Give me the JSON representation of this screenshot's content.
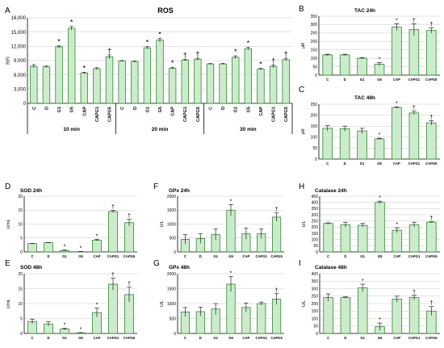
{
  "chart_data": [
    {
      "id": "A",
      "type": "bar",
      "title": "ROS",
      "ylabel": "RFI",
      "ylim": [
        0,
        18000
      ],
      "yticks": [
        0,
        3000,
        6000,
        9000,
        12000,
        15000,
        18000
      ],
      "ytick_labels": [
        "0",
        "3,000",
        "6,000",
        "9,000",
        "12,000",
        "15,000",
        "18,000"
      ],
      "grid": true,
      "categories": [
        "C",
        "D",
        "G1",
        "G5",
        "CAP",
        "CAPG1",
        "CAPG5",
        "C",
        "D",
        "G1",
        "G5",
        "CAP",
        "CAPG1",
        "CAPG5",
        "C",
        "D",
        "G1",
        "G5",
        "CAP",
        "CAPG1",
        "CAPG5"
      ],
      "values": [
        7800,
        7700,
        11900,
        15800,
        6400,
        7300,
        9800,
        8900,
        8800,
        11700,
        13300,
        7400,
        9100,
        9300,
        8300,
        8300,
        9700,
        11500,
        7200,
        7800,
        9200
      ],
      "errors": [
        350,
        150,
        200,
        400,
        150,
        200,
        400,
        100,
        100,
        250,
        400,
        200,
        150,
        200,
        100,
        100,
        300,
        300,
        150,
        300,
        300
      ],
      "marks": [
        "",
        "",
        "*",
        "*",
        "*",
        "",
        "†",
        "",
        "",
        "*",
        "*",
        "*",
        "†",
        "†",
        "",
        "",
        "*",
        "*",
        "*",
        "†",
        "†"
      ],
      "groups": [
        {
          "label": "10 min",
          "start": 0,
          "end": 6
        },
        {
          "label": "20 min",
          "start": 7,
          "end": 13
        },
        {
          "label": "30 min",
          "start": 14,
          "end": 20
        }
      ]
    },
    {
      "id": "B",
      "type": "bar",
      "title": "TAC 24h",
      "ylabel": "μM",
      "ylim": [
        0,
        350
      ],
      "yticks": [
        0,
        50,
        100,
        150,
        200,
        250,
        300,
        350
      ],
      "ytick_labels": [
        "0",
        "50",
        "100",
        "150",
        "200",
        "250",
        "300",
        "350"
      ],
      "grid": true,
      "categories": [
        "C",
        "D",
        "G1",
        "G5",
        "CAP",
        "CAPG1",
        "CAPG5"
      ],
      "values": [
        120,
        120,
        100,
        65,
        285,
        270,
        265
      ],
      "errors": [
        4,
        4,
        4,
        10,
        20,
        35,
        15
      ],
      "marks": [
        "",
        "",
        "",
        "*",
        "*",
        "†",
        "†"
      ]
    },
    {
      "id": "C",
      "type": "bar",
      "title": "TAC 48h",
      "ylabel": "μM",
      "ylim": [
        0,
        250
      ],
      "yticks": [
        0,
        50,
        100,
        150,
        200,
        250
      ],
      "ytick_labels": [
        "0",
        "50",
        "100",
        "150",
        "200",
        "250"
      ],
      "grid": true,
      "categories": [
        "C",
        "D",
        "G1",
        "G5",
        "CAP",
        "CAPG1",
        "CAPG5"
      ],
      "values": [
        140,
        138,
        128,
        92,
        235,
        210,
        165
      ],
      "errors": [
        12,
        12,
        12,
        3,
        3,
        8,
        10
      ],
      "marks": [
        "",
        "",
        "",
        "*",
        "*",
        "†",
        "†"
      ]
    },
    {
      "id": "D",
      "type": "bar",
      "title": "SOD 24h",
      "ylabel": "U/mL",
      "ylim": [
        0,
        20
      ],
      "yticks": [
        0,
        5,
        10,
        15,
        20
      ],
      "ytick_labels": [
        "0",
        "5",
        "10",
        "15",
        "20"
      ],
      "grid": true,
      "categories": [
        "C",
        "D",
        "G1",
        "G5",
        "CAP",
        "CAPG1",
        "CAPG5"
      ],
      "values": [
        3.0,
        3.3,
        0.5,
        0.1,
        4.2,
        14.5,
        10.5
      ],
      "errors": [
        0.1,
        0.1,
        0.2,
        0.1,
        0.3,
        0.4,
        1.2
      ],
      "marks": [
        "",
        "",
        "*",
        "*",
        "*",
        "†",
        "†"
      ]
    },
    {
      "id": "E",
      "type": "bar",
      "title": "SOD 48h",
      "ylabel": "U/mL",
      "ylim": [
        0,
        20
      ],
      "yticks": [
        0,
        5,
        10,
        15,
        20
      ],
      "ytick_labels": [
        "0",
        "5",
        "10",
        "15",
        "20"
      ],
      "grid": true,
      "categories": [
        "C",
        "D",
        "G1",
        "G5",
        "CAP",
        "CAPG1",
        "CAPG5"
      ],
      "values": [
        4.0,
        3.2,
        1.5,
        0.2,
        7.0,
        16.5,
        13.0
      ],
      "errors": [
        0.8,
        0.7,
        0.3,
        0.1,
        1.5,
        2.0,
        2.5
      ],
      "marks": [
        "",
        "",
        "*",
        "*",
        "*",
        "†",
        "†"
      ]
    },
    {
      "id": "F",
      "type": "bar",
      "title": "GPx 24h",
      "ylabel": "U/L",
      "ylim": [
        0,
        2000
      ],
      "yticks": [
        0,
        500,
        1000,
        1500,
        2000
      ],
      "ytick_labels": [
        "0",
        "500",
        "1000",
        "1500",
        "2000"
      ],
      "grid": true,
      "categories": [
        "C",
        "D",
        "G1",
        "G5",
        "CAP",
        "CAPG1",
        "CAPG5"
      ],
      "values": [
        450,
        480,
        620,
        1500,
        650,
        650,
        1250
      ],
      "errors": [
        170,
        170,
        200,
        200,
        200,
        170,
        150
      ],
      "marks": [
        "",
        "",
        "",
        "*",
        "",
        "",
        "†"
      ]
    },
    {
      "id": "G",
      "type": "bar",
      "title": "GPx 48h",
      "ylabel": "U/L",
      "ylim": [
        0,
        2000
      ],
      "yticks": [
        0,
        500,
        1000,
        1500,
        2000
      ],
      "ytick_labels": [
        "0",
        "500",
        "1000",
        "1500",
        "2000"
      ],
      "grid": true,
      "categories": [
        "C",
        "D",
        "G1",
        "G5",
        "CAP",
        "CAPG1",
        "CAPG5"
      ],
      "values": [
        720,
        730,
        820,
        1650,
        870,
        1000,
        1150
      ],
      "errors": [
        150,
        150,
        180,
        250,
        150,
        50,
        180
      ],
      "marks": [
        "",
        "",
        "",
        "*",
        "",
        "",
        "†"
      ]
    },
    {
      "id": "H",
      "type": "bar",
      "title": "Catalase 24h",
      "ylabel": "U/L",
      "ylim": [
        0,
        450
      ],
      "yticks": [
        0,
        50,
        100,
        150,
        200,
        250,
        300,
        350,
        400,
        450
      ],
      "ytick_labels": [
        "0",
        "50",
        "100",
        "150",
        "200",
        "250",
        "300",
        "350",
        "400",
        "450"
      ],
      "grid": true,
      "categories": [
        "C",
        "D",
        "G1",
        "G5",
        "CAP",
        "CAPG1",
        "CAPG5"
      ],
      "values": [
        230,
        220,
        215,
        400,
        175,
        220,
        240
      ],
      "errors": [
        5,
        20,
        15,
        10,
        20,
        20,
        4
      ],
      "marks": [
        "",
        "",
        "",
        "*",
        "*",
        "",
        "†"
      ]
    },
    {
      "id": "I",
      "type": "bar",
      "title": "Catalase 48h",
      "ylabel": "U/L",
      "ylim": [
        0,
        400
      ],
      "yticks": [
        0,
        50,
        100,
        150,
        200,
        250,
        300,
        350,
        400
      ],
      "ytick_labels": [
        "0",
        "50",
        "100",
        "150",
        "200",
        "250",
        "300",
        "350",
        "400"
      ],
      "grid": true,
      "categories": [
        "C",
        "D",
        "G1",
        "G5",
        "CAP",
        "CAPG1",
        "CAPG5"
      ],
      "values": [
        240,
        240,
        305,
        45,
        230,
        240,
        150
      ],
      "errors": [
        25,
        5,
        25,
        25,
        20,
        15,
        30
      ],
      "marks": [
        "",
        "",
        "*",
        "*",
        "",
        "†",
        "†"
      ]
    }
  ]
}
